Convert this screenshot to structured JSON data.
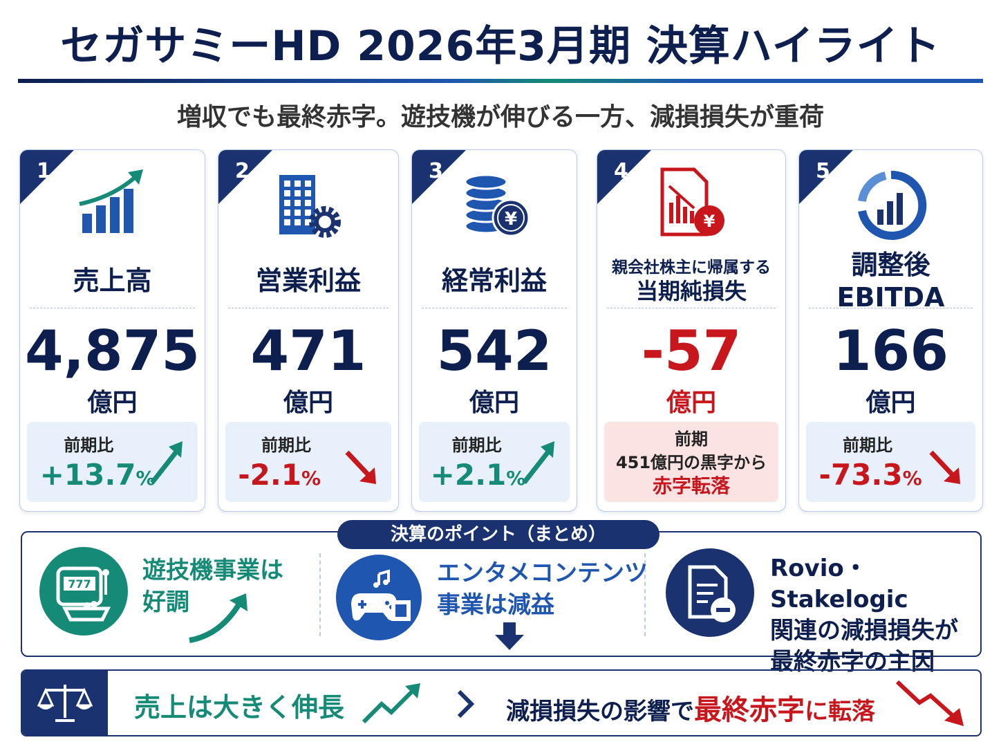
{
  "header": {
    "title": "セガサミーHD 2026年3月期 決算ハイライト",
    "subtitle": "増収でも最終赤字。遊技機が伸びる一方、減損損失が重荷"
  },
  "cards": [
    {
      "number": "1",
      "label": [
        "売上高"
      ],
      "value": "4,875",
      "unit": "億円",
      "value_color": "#0d1f4f",
      "change_label": [
        "前期比"
      ],
      "change": "+13.7",
      "change_unit": "%",
      "change_color": "#148a77",
      "trend": "up"
    },
    {
      "number": "2",
      "label": [
        "営業利益"
      ],
      "value": "471",
      "unit": "億円",
      "value_color": "#0d1f4f",
      "change_label": [
        "前期比"
      ],
      "change": "-2.1",
      "change_unit": "%",
      "change_color": "#c8161d",
      "trend": "down"
    },
    {
      "number": "3",
      "label": [
        "経常利益"
      ],
      "value": "542",
      "unit": "億円",
      "value_color": "#0d1f4f",
      "change_label": [
        "前期比"
      ],
      "change": "+2.1",
      "change_unit": "%",
      "change_color": "#148a77",
      "trend": "up"
    },
    {
      "number": "4",
      "label": [
        "親会社株主に帰属する",
        "当期純損失"
      ],
      "value": "-57",
      "unit": "億円",
      "value_color": "#c8161d",
      "change_label": [
        "前期",
        "451億円の黒字から"
      ],
      "change": "赤字転落",
      "change_color": "#c8161d",
      "box_color": "#fbe3e3"
    },
    {
      "number": "5",
      "label": [
        "調整後EBITDA"
      ],
      "value": "166",
      "unit": "億円",
      "value_color": "#0d1f4f",
      "change_label": [
        "前期比"
      ],
      "change": "-73.3",
      "change_unit": "%",
      "change_color": "#c8161d",
      "trend": "down"
    }
  ],
  "points": {
    "title": "決算のポイント（まとめ）",
    "items": [
      [
        "遊技機事業は",
        "好調"
      ],
      [
        "エンタメコンテンツ",
        "事業は減益"
      ],
      [
        "Rovio・Stakelogic",
        "関連の減損損失が",
        "最終赤字の主因"
      ]
    ]
  },
  "summary": {
    "left": "売上は大きく伸長",
    "right": "減損損失の影響で",
    "highlight": "最終赤字",
    "tail": "に転落"
  }
}
